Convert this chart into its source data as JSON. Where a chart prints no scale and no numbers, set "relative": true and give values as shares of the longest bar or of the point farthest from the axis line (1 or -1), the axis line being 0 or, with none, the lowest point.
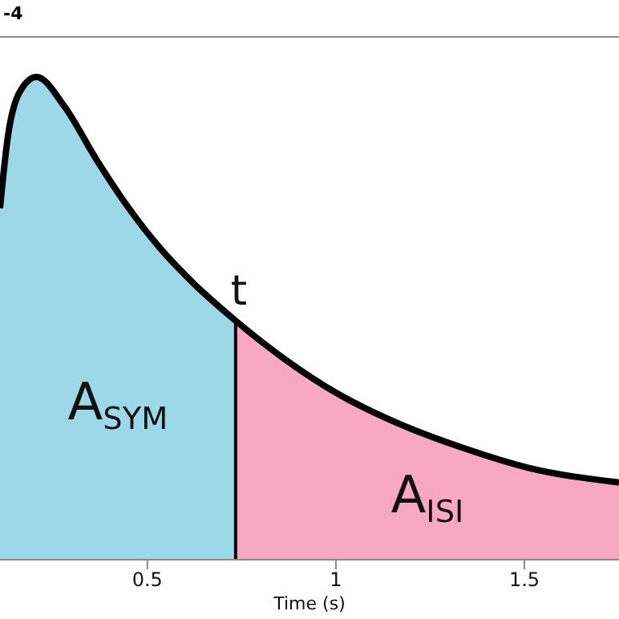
{
  "chart_data": {
    "type": "area",
    "relative": true,
    "xlabel": "Time (s)",
    "xlim": [
      0.109,
      1.751
    ],
    "xticks": [
      0.5,
      1,
      1.5
    ],
    "grid": false,
    "legend": false,
    "annotations": [
      "-4",
      {
        "text": "t",
        "x": 0.734,
        "y": 0.495
      }
    ],
    "series": [
      {
        "name": "A$_{SYM}$",
        "color": "#9dd8e8",
        "x": [
          0.109,
          0.13,
          0.16,
          0.206,
          0.279,
          0.364,
          0.449,
          0.534,
          0.619,
          0.734
        ],
        "values": [
          0.728,
          0.877,
          0.967,
          1,
          0.94,
          0.83,
          0.73,
          0.645,
          0.575,
          0.495
        ]
      },
      {
        "name": "A$_{ISI}$",
        "color": "#f9a8c4",
        "x": [
          0.734,
          0.874,
          1.002,
          1.172,
          1.343,
          1.512,
          1.751
        ],
        "values": [
          0.495,
          0.41,
          0.345,
          0.28,
          0.23,
          0.19,
          0.16
        ]
      },
      {
        "type": "line",
        "color": "#000000",
        "x": [
          0.109,
          0.13,
          0.16,
          0.206,
          0.279,
          0.364,
          0.449,
          0.534,
          0.619,
          0.734,
          0.874,
          1.002,
          1.172,
          1.343,
          1.512,
          1.751
        ],
        "values": [
          0.728,
          0.877,
          0.967,
          1,
          0.94,
          0.83,
          0.73,
          0.645,
          0.575,
          0.495,
          0.41,
          0.345,
          0.28,
          0.23,
          0.19,
          0.16
        ]
      }
    ]
  }
}
